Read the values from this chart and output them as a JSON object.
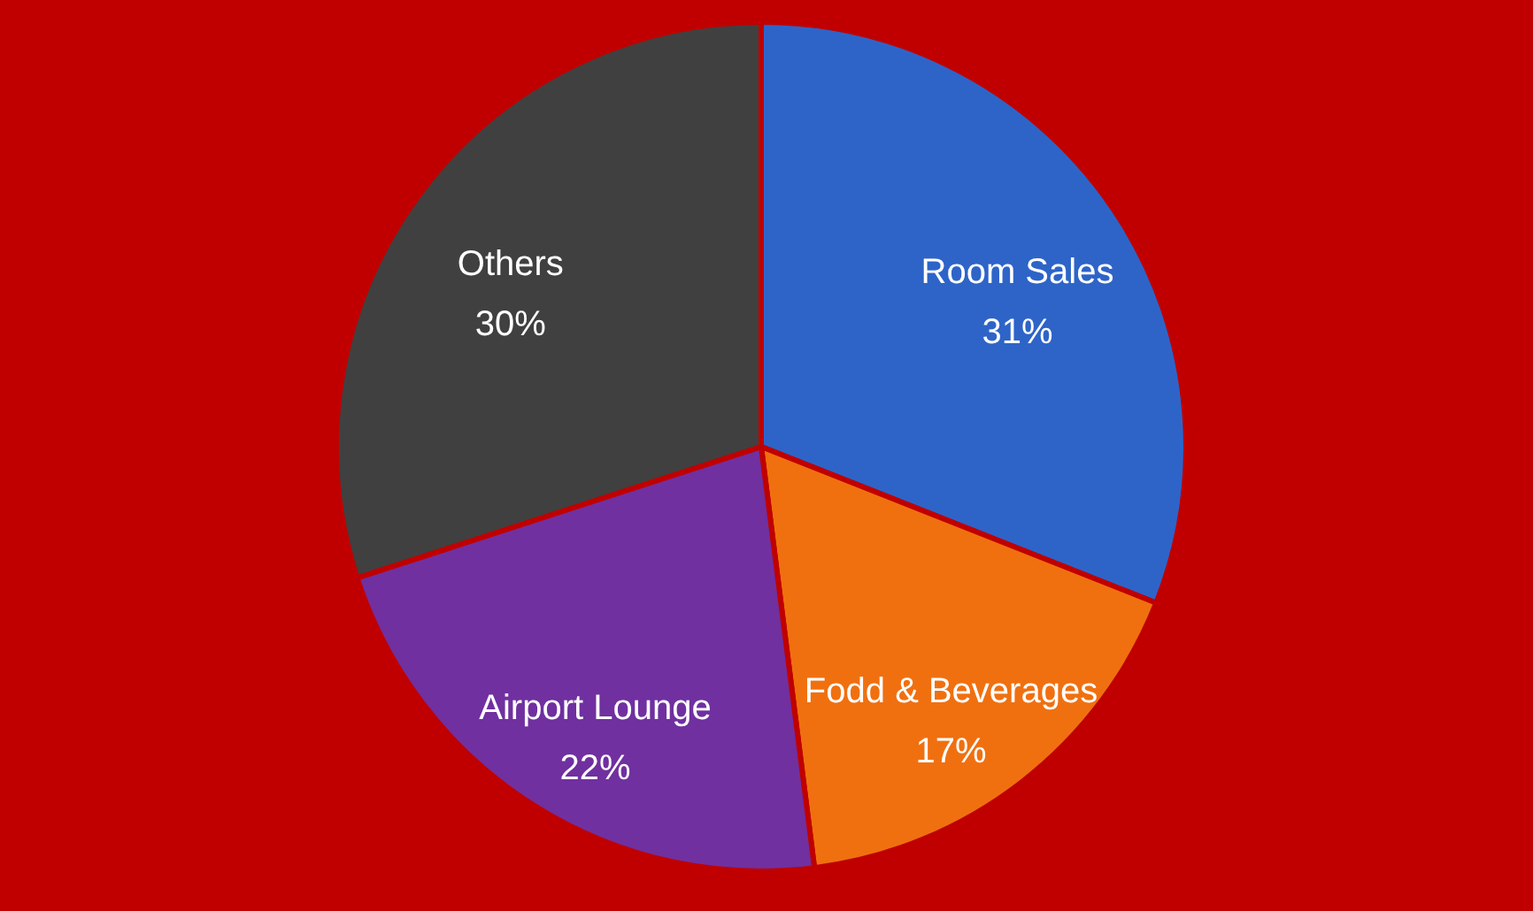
{
  "chart_data": {
    "type": "pie",
    "categories": [
      "Room Sales",
      "Fodd & Beverages",
      "Airport Lounge",
      "Others"
    ],
    "values": [
      31,
      17,
      22,
      30
    ],
    "value_labels": [
      "31%",
      "17%",
      "22%",
      "30%"
    ],
    "colors": [
      "#2e64c8",
      "#f07010",
      "#7030a0",
      "#404040"
    ]
  }
}
